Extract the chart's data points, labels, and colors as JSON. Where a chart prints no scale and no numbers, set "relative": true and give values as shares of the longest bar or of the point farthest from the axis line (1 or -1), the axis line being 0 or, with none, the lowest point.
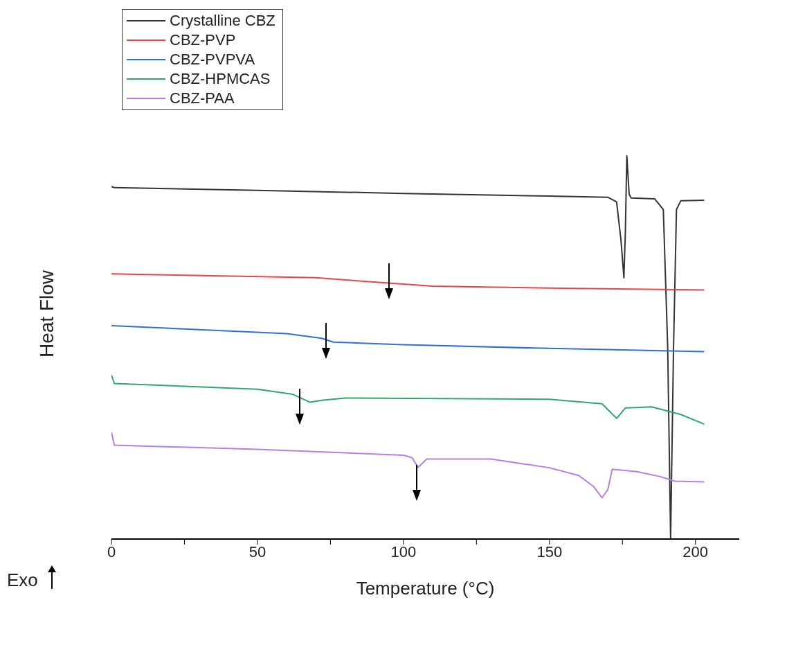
{
  "chart_data": {
    "type": "line",
    "xlabel": "Temperature (°C)",
    "ylabel": "Heat Flow",
    "relative": true,
    "xlim": [
      0,
      215
    ],
    "xticks": [
      0,
      {
        "value": 25,
        "label": null
      },
      50,
      {
        "value": 75,
        "label": null
      },
      100,
      {
        "value": 125,
        "label": null
      },
      150,
      {
        "value": 175,
        "label": null
      },
      200
    ],
    "legend": "top left",
    "annotations": [
      "Exo"
    ],
    "series": [
      {
        "name": "Crystalline CBZ",
        "color": "#333333",
        "x": [
          0,
          1,
          50,
          100,
          150,
          170,
          173,
          174.5,
          175.5,
          176,
          176.5,
          177.3,
          178,
          186,
          189,
          190.5,
          191.5,
          192.5,
          193.5,
          195,
          203
        ],
        "values": [
          0.92,
          0.917,
          0.91,
          0.902,
          0.895,
          0.892,
          0.88,
          0.78,
          0.682,
          0.8,
          1.0,
          0.9,
          0.89,
          0.888,
          0.86,
          0.5,
          0,
          0.5,
          0.86,
          0.883,
          0.884
        ]
      },
      {
        "name": "CBZ-PVP",
        "color": "#e8454a",
        "x": [
          0,
          70,
          95,
          110,
          150,
          203
        ],
        "values": [
          0.692,
          0.682,
          0.668,
          0.66,
          0.655,
          0.65
        ]
      },
      {
        "name": "CBZ-PVPVA",
        "color": "#2f6fdb",
        "x": [
          0,
          60,
          72,
          76,
          100,
          150,
          203
        ],
        "values": [
          0.557,
          0.536,
          0.524,
          0.514,
          0.507,
          0.4975,
          0.489
        ]
      },
      {
        "name": "CBZ-HPMCAS",
        "color": "#2fa86a",
        "x": [
          0,
          1,
          50,
          62,
          68,
          72,
          80,
          150,
          168,
          173,
          176,
          185,
          195,
          203
        ],
        "values": [
          0.428,
          0.406,
          0.391,
          0.378,
          0.357,
          0.362,
          0.368,
          0.365,
          0.353,
          0.315,
          0.342,
          0.345,
          0.325,
          0.3
        ]
      },
      {
        "name": "CBZ-PAA",
        "color": "#b57ee0",
        "x": [
          0,
          1,
          50,
          100,
          103,
          105,
          108,
          130,
          150,
          160,
          165,
          168,
          170,
          171.5,
          180,
          188,
          193,
          203
        ],
        "values": [
          0.279,
          0.245,
          0.234,
          0.219,
          0.212,
          0.187,
          0.209,
          0.209,
          0.186,
          0.166,
          0.138,
          0.108,
          0.129,
          0.182,
          0.176,
          0.163,
          0.151,
          0.149
        ]
      }
    ]
  }
}
